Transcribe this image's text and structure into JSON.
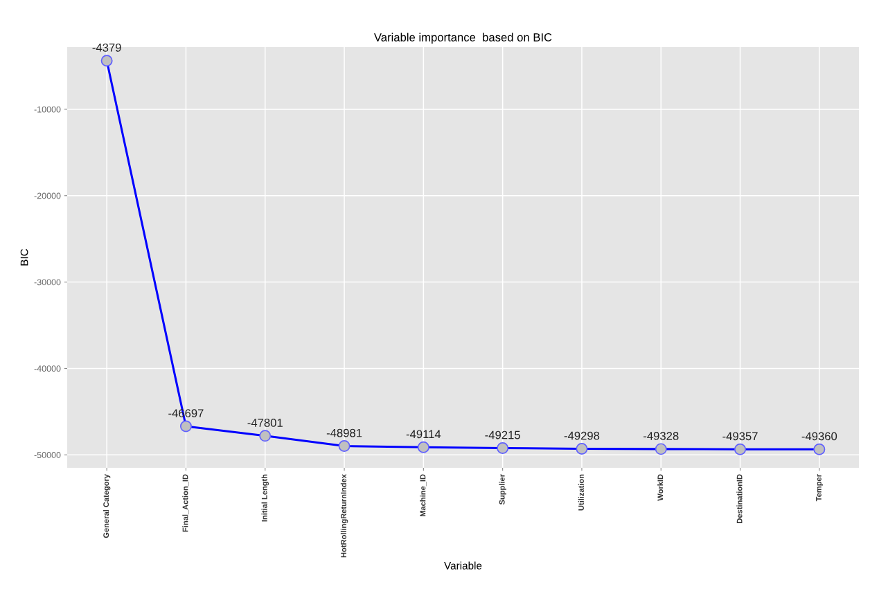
{
  "chart_data": {
    "type": "line",
    "title": "Variable importance  based on BIC",
    "xlabel": "Variable",
    "ylabel": "BIC",
    "categories": [
      "General Category",
      "Final_Action_ID",
      "Initial Length",
      "HotRollingReturnIndex",
      "Machine_ID",
      "Supplier",
      "Utilization",
      "WorkID",
      "DestinationID",
      "Temper"
    ],
    "values": [
      -4379,
      -46697,
      -47801,
      -48981,
      -49114,
      -49215,
      -49298,
      -49328,
      -49357,
      -49360
    ],
    "color": "#0000ff",
    "marker": "circle",
    "line_style": "solid",
    "data_labels": true,
    "grid": true,
    "ylim": [
      -51500,
      -2800
    ],
    "yticks": [
      -50000,
      -40000,
      -30000,
      -20000,
      -10000
    ]
  }
}
